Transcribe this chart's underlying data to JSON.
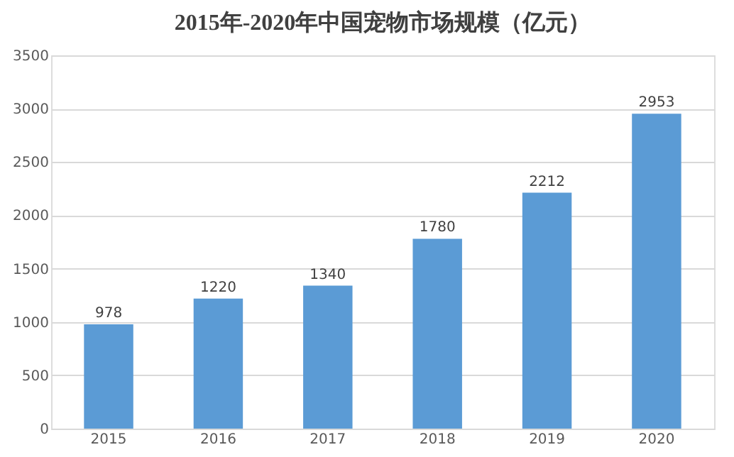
{
  "chart_data": {
    "type": "bar",
    "title": "2015年-2020年中国宠物市场规模（亿元）",
    "categories": [
      "2015",
      "2016",
      "2017",
      "2018",
      "2019",
      "2020"
    ],
    "values": [
      978,
      1220,
      1340,
      1780,
      2212,
      2953
    ],
    "color": "#5b9bd5",
    "ylim": [
      0,
      3500
    ],
    "yticks": [
      0,
      500,
      1000,
      1500,
      2000,
      2500,
      3000,
      3500
    ],
    "grid": "y",
    "data_labels": true
  }
}
